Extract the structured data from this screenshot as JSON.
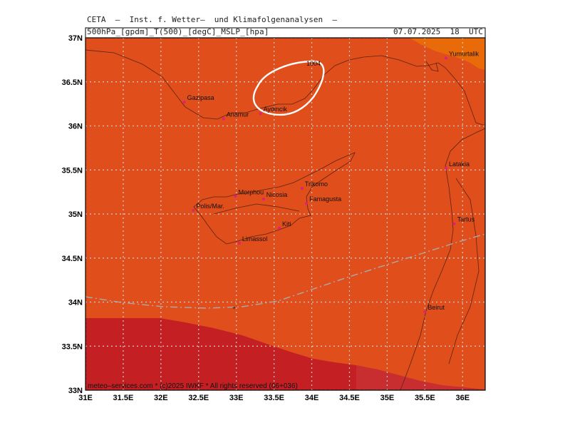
{
  "header": {
    "title": "CETA  –  Inst. f. Wetter–  und Klimafolgenanalysen  –",
    "parameters": "500hPa_[gpdm]_T(500)_[degC]_MSLP_[hpa]",
    "datetime": "07.07.2025  18  UTC"
  },
  "footer": {
    "credit": "meteo–services.com  *  (c)2025  IWKF  *  All  rights  reserved  (06+036)"
  },
  "colors": {
    "field_main": "#e04e1c",
    "field_warm": "#e86a08",
    "field_cool": "#c42024",
    "field_cool_edge": "#cc3a3a",
    "grid": "#cfcfcf",
    "coast": "#5a2410",
    "isobar": "#ffffff",
    "contour_dash": "#aaaaaa",
    "city_marker": "#e0207a"
  },
  "map": {
    "lon_range": [
      31.0,
      36.3
    ],
    "lat_range": [
      33.0,
      37.0
    ],
    "lon_labels": [
      {
        "lon": 31.0,
        "text": "31E"
      },
      {
        "lon": 31.5,
        "text": "31.5E"
      },
      {
        "lon": 32.0,
        "text": "32E"
      },
      {
        "lon": 32.5,
        "text": "32.5E"
      },
      {
        "lon": 33.0,
        "text": "33E"
      },
      {
        "lon": 33.5,
        "text": "33.5E"
      },
      {
        "lon": 34.0,
        "text": "34E"
      },
      {
        "lon": 34.5,
        "text": "34.5E"
      },
      {
        "lon": 35.0,
        "text": "35E"
      },
      {
        "lon": 35.5,
        "text": "35.5E"
      },
      {
        "lon": 36.0,
        "text": "36E"
      }
    ],
    "lat_labels": [
      {
        "lat": 37.0,
        "text": "37N"
      },
      {
        "lat": 36.5,
        "text": "36.5N"
      },
      {
        "lat": 36.0,
        "text": "36N"
      },
      {
        "lat": 35.5,
        "text": "35.5N"
      },
      {
        "lat": 35.0,
        "text": "35N"
      },
      {
        "lat": 34.5,
        "text": "34.5N"
      },
      {
        "lat": 34.0,
        "text": "34N"
      },
      {
        "lat": 33.5,
        "text": "33.5N"
      },
      {
        "lat": 33.0,
        "text": "33N"
      }
    ],
    "cities": [
      {
        "name": "Yumurtalik",
        "lon": 35.78,
        "lat": 36.77
      },
      {
        "name": "Gazipasa",
        "lon": 32.31,
        "lat": 36.27
      },
      {
        "name": "Anamur",
        "lon": 32.83,
        "lat": 36.08
      },
      {
        "name": "Aydincik",
        "lon": 33.32,
        "lat": 36.14
      },
      {
        "name": "Latakia",
        "lon": 35.78,
        "lat": 35.52
      },
      {
        "name": "Trikomo",
        "lon": 33.87,
        "lat": 35.29
      },
      {
        "name": "Morphou",
        "lon": 32.99,
        "lat": 35.2
      },
      {
        "name": "Nicosia",
        "lon": 33.36,
        "lat": 35.17
      },
      {
        "name": "Famagusta",
        "lon": 33.93,
        "lat": 35.12
      },
      {
        "name": "Polis/Mar.",
        "lon": 32.43,
        "lat": 35.04
      },
      {
        "name": "Tartus",
        "lon": 35.89,
        "lat": 34.89
      },
      {
        "name": "Kiti",
        "lon": 33.57,
        "lat": 34.84
      },
      {
        "name": "Limassol",
        "lon": 33.04,
        "lat": 34.67
      },
      {
        "name": "Beirut",
        "lon": 35.5,
        "lat": 33.89
      }
    ],
    "isobar_label": "1004"
  }
}
